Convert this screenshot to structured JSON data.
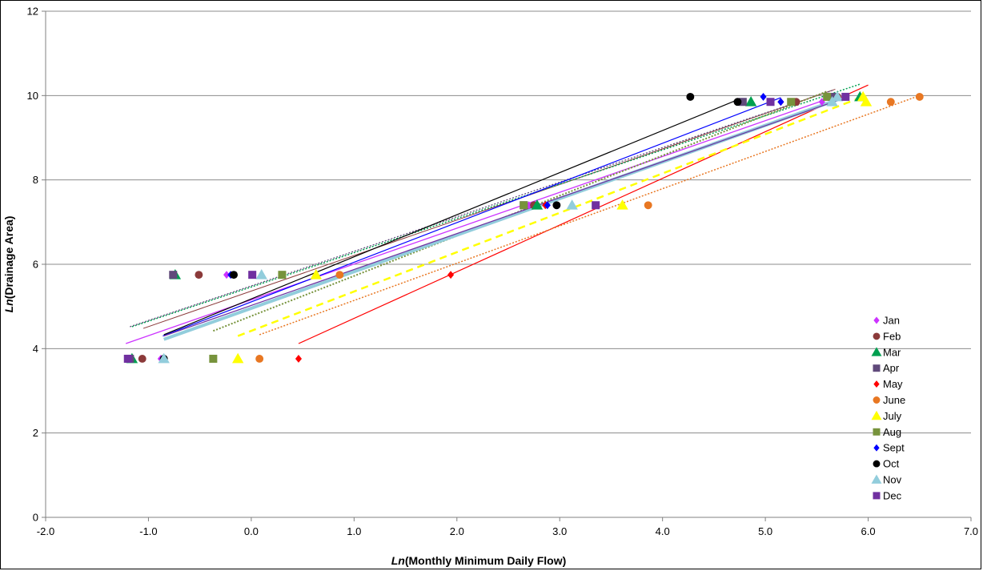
{
  "chart_data": {
    "type": "scatter",
    "xlabel_prefix": "Ln",
    "xlabel_rest": "(Monthly Minimum Daily Flow)",
    "ylabel_prefix": "Ln",
    "ylabel_rest": "(Drainage Area)",
    "xlim": [
      -2.0,
      7.0
    ],
    "ylim": [
      0,
      12
    ],
    "xticks": [
      "-2.0",
      "-1.0",
      "0.0",
      "1.0",
      "2.0",
      "3.0",
      "4.0",
      "5.0",
      "6.0",
      "7.0"
    ],
    "yticks": [
      "0",
      "2",
      "4",
      "6",
      "8",
      "10",
      "12"
    ],
    "grid": "horizontal",
    "legend_position": "right",
    "series": [
      {
        "name": "Jan",
        "color": "#cc33ff",
        "marker": "diamond",
        "trend_style": "solid",
        "trend_width": 1.3,
        "points": [
          [
            -0.88,
            3.76
          ],
          [
            -0.24,
            5.75
          ],
          [
            2.7,
            7.4
          ],
          [
            5.55,
            9.85
          ],
          [
            5.7,
            9.97
          ]
        ],
        "trend": [
          [
            -1.22,
            4.12
          ],
          [
            5.7,
            10.0
          ]
        ]
      },
      {
        "name": "Feb",
        "color": "#8b3a3a",
        "marker": "circle",
        "trend_style": "solid",
        "trend_width": 1.0,
        "points": [
          [
            -1.06,
            3.76
          ],
          [
            -0.51,
            5.75
          ],
          [
            2.75,
            7.4
          ],
          [
            5.3,
            9.85
          ],
          [
            5.7,
            9.97
          ]
        ],
        "trend": [
          [
            -1.05,
            4.48
          ],
          [
            5.68,
            10.15
          ]
        ]
      },
      {
        "name": "Mar",
        "color": "#00a050",
        "marker": "triangle",
        "trend_style": "dotted",
        "trend_width": 1.5,
        "points": [
          [
            -1.16,
            3.76
          ],
          [
            -0.74,
            5.75
          ],
          [
            2.78,
            7.4
          ],
          [
            4.86,
            9.85
          ],
          [
            5.92,
            9.97
          ]
        ],
        "trend": [
          [
            -1.16,
            4.52
          ],
          [
            5.92,
            10.27
          ]
        ]
      },
      {
        "name": "Apr",
        "color": "#604a7b",
        "marker": "square",
        "trend_style": "dotted",
        "trend_width": 1.3,
        "points": [
          [
            -1.18,
            3.76
          ],
          [
            -0.76,
            5.75
          ],
          [
            2.65,
            7.4
          ],
          [
            4.78,
            9.85
          ],
          [
            5.65,
            9.97
          ]
        ],
        "trend": [
          [
            -1.18,
            4.52
          ],
          [
            5.65,
            10.12
          ]
        ]
      },
      {
        "name": "May",
        "color": "#ff0000",
        "marker": "diamond",
        "trend_style": "solid",
        "trend_width": 1.2,
        "points": [
          [
            0.46,
            3.76
          ],
          [
            1.94,
            5.75
          ],
          [
            2.86,
            7.4
          ],
          [
            5.15,
            9.85
          ],
          [
            5.7,
            9.97
          ]
        ],
        "trend": [
          [
            0.46,
            4.12
          ],
          [
            6.0,
            10.25
          ]
        ]
      },
      {
        "name": "June",
        "color": "#e87722",
        "marker": "circle",
        "trend_style": "dotted",
        "trend_width": 1.5,
        "points": [
          [
            0.08,
            3.76
          ],
          [
            0.86,
            5.75
          ],
          [
            3.86,
            7.4
          ],
          [
            6.22,
            9.85
          ],
          [
            6.5,
            9.97
          ]
        ],
        "trend": [
          [
            0.08,
            4.33
          ],
          [
            6.5,
            10.0
          ]
        ]
      },
      {
        "name": "July",
        "color": "#ffff00",
        "marker": "triangle",
        "trend_style": "dashed",
        "trend_width": 2.5,
        "points": [
          [
            -0.13,
            3.76
          ],
          [
            0.63,
            5.75
          ],
          [
            3.61,
            7.4
          ],
          [
            5.98,
            9.85
          ],
          [
            5.95,
            9.97
          ]
        ],
        "trend": [
          [
            -0.13,
            4.3
          ],
          [
            5.98,
            10.0
          ]
        ]
      },
      {
        "name": "Aug",
        "color": "#77933c",
        "marker": "square",
        "trend_style": "dotted",
        "trend_width": 2.0,
        "points": [
          [
            -0.37,
            3.76
          ],
          [
            0.3,
            5.75
          ],
          [
            2.65,
            7.4
          ],
          [
            5.25,
            9.85
          ],
          [
            5.6,
            9.97
          ]
        ],
        "trend": [
          [
            -0.37,
            4.42
          ],
          [
            5.6,
            10.1
          ]
        ]
      },
      {
        "name": "Sept",
        "color": "#0000ff",
        "marker": "diamond",
        "trend_style": "solid",
        "trend_width": 1.2,
        "points": [
          [
            -0.86,
            3.76
          ],
          [
            -0.2,
            5.75
          ],
          [
            2.88,
            7.4
          ],
          [
            5.15,
            9.85
          ],
          [
            4.98,
            9.97
          ]
        ],
        "trend": [
          [
            -0.86,
            4.3
          ],
          [
            5.15,
            9.95
          ]
        ]
      },
      {
        "name": "Oct",
        "color": "#000000",
        "marker": "circle",
        "trend_style": "solid",
        "trend_width": 1.2,
        "points": [
          [
            -0.85,
            3.76
          ],
          [
            -0.17,
            5.75
          ],
          [
            2.97,
            7.4
          ],
          [
            4.73,
            9.85
          ],
          [
            4.27,
            9.97
          ]
        ],
        "trend": [
          [
            -0.85,
            4.33
          ],
          [
            4.73,
            9.9
          ]
        ]
      },
      {
        "name": "Nov",
        "color": "#92cddc",
        "marker": "triangle",
        "trend_style": "solid",
        "trend_width": 4,
        "points": [
          [
            -0.85,
            3.76
          ],
          [
            0.1,
            5.75
          ],
          [
            3.12,
            7.4
          ],
          [
            5.65,
            9.85
          ],
          [
            5.7,
            9.97
          ]
        ],
        "trend": [
          [
            -0.85,
            4.22
          ],
          [
            5.7,
            9.9
          ]
        ]
      },
      {
        "name": "Dec",
        "color": "#7030a0",
        "marker": "square",
        "trend_style": "solid",
        "trend_width": 1.2,
        "points": [
          [
            -1.2,
            3.76
          ],
          [
            0.01,
            5.75
          ],
          [
            3.35,
            7.4
          ],
          [
            5.05,
            9.85
          ],
          [
            5.78,
            9.97
          ]
        ],
        "trend": [
          [
            -0.85,
            4.3
          ],
          [
            5.78,
            9.95
          ]
        ]
      }
    ]
  }
}
